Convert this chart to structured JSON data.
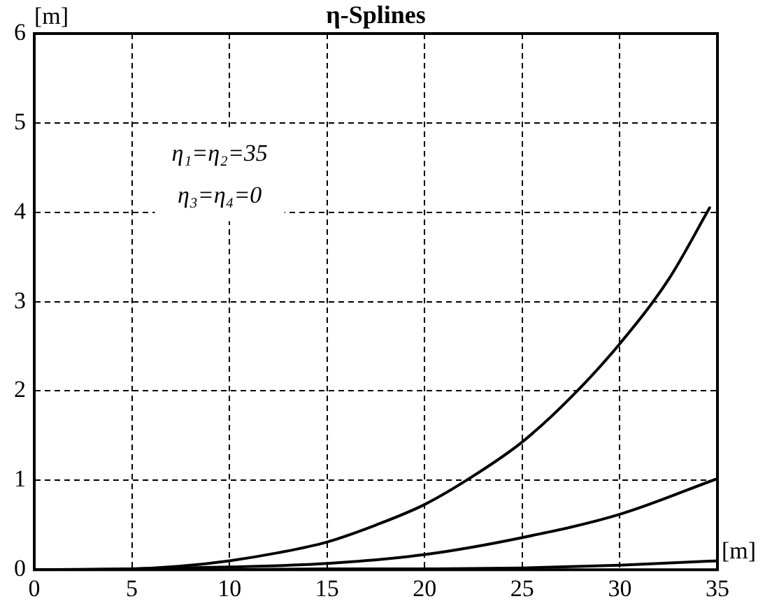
{
  "chart_data": {
    "type": "line",
    "title": "η-Splines",
    "xlabel": "[m]",
    "ylabel": "[m]",
    "annotations": [
      "η₁=η₂=35",
      "η₃=η₄=0"
    ],
    "xlim": [
      0,
      35
    ],
    "ylim": [
      0,
      6
    ],
    "xticks": [
      0,
      5,
      10,
      15,
      20,
      25,
      30,
      35
    ],
    "yticks": [
      0,
      1,
      2,
      3,
      4,
      5,
      6
    ],
    "grid": true,
    "legend": false,
    "marker": "none",
    "line_style": "solid",
    "series": [
      {
        "color": "#000000",
        "x": [
          0,
          5,
          7.5,
          10,
          12.5,
          15,
          17.5,
          20,
          22.5,
          25,
          27.5,
          30,
          32.5,
          34.6
        ],
        "values": [
          0,
          0.01,
          0.04,
          0.1,
          0.19,
          0.31,
          0.5,
          0.73,
          1.05,
          1.43,
          1.93,
          2.53,
          3.25,
          4.05
        ]
      },
      {
        "color": "#000000",
        "x": [
          0,
          5,
          10,
          15,
          20,
          25,
          30,
          35
        ],
        "values": [
          0,
          0.01,
          0.03,
          0.07,
          0.17,
          0.36,
          0.62,
          1.02
        ]
      },
      {
        "color": "#000000",
        "x": [
          0,
          10,
          15,
          20,
          25,
          30,
          35
        ],
        "values": [
          0,
          0,
          0.01,
          0.01,
          0.02,
          0.05,
          0.1
        ]
      }
    ]
  }
}
